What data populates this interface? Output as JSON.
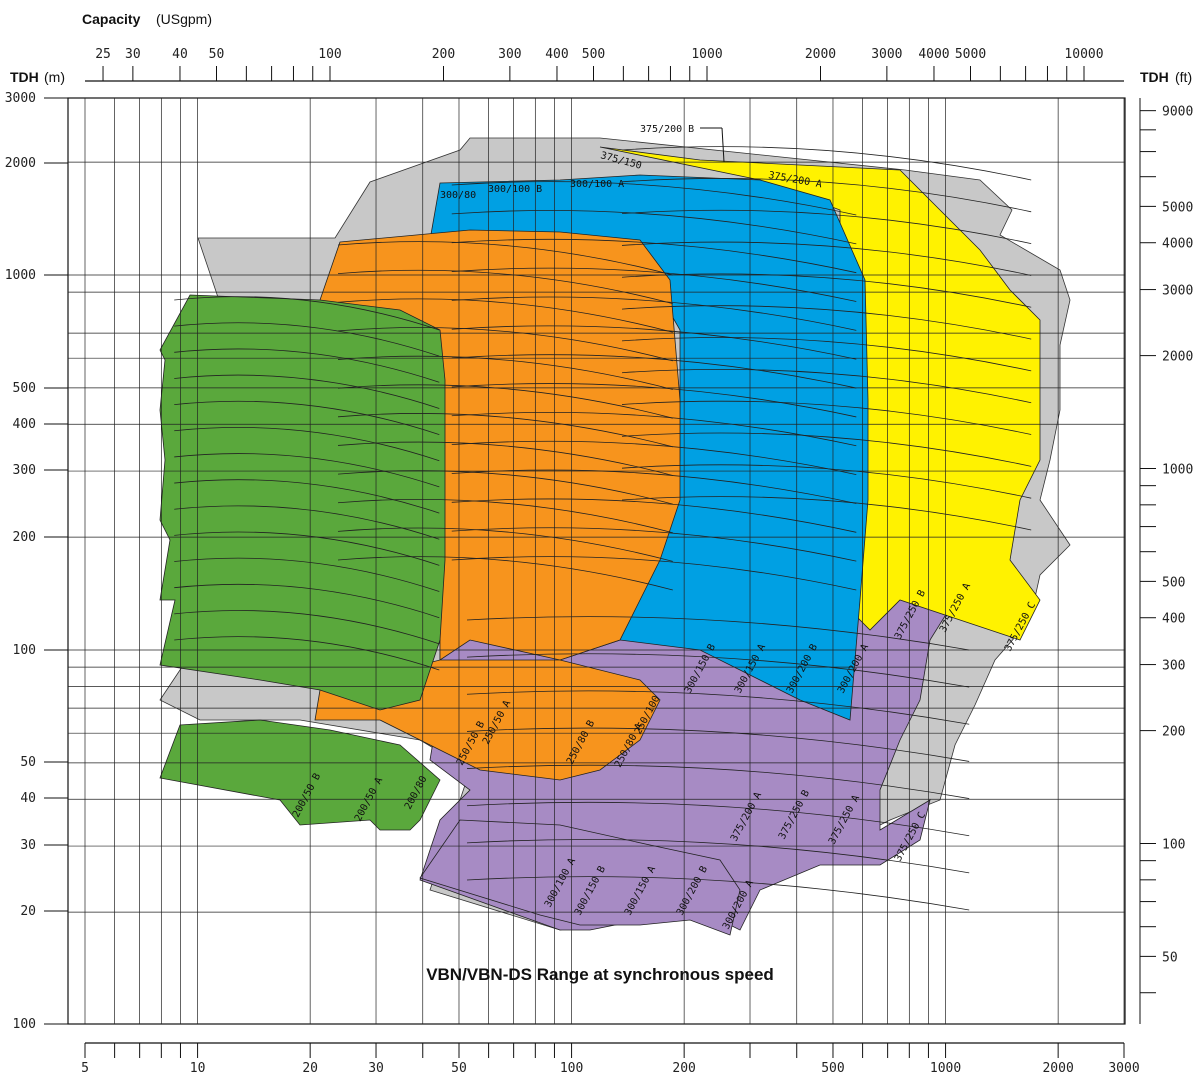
{
  "chart_data": {
    "type": "area",
    "title": "VBN/VBN-DS Range at synchronous speed",
    "axes": {
      "capacity": {
        "label_bold": "Capacity",
        "label_unit": "(USgpm)",
        "scale": "log",
        "tick_labels": [
          "25",
          "30",
          "40",
          "50",
          "100",
          "200",
          "300",
          "400",
          "500",
          "1000",
          "2000",
          "3000",
          "4000",
          "5000",
          "10000"
        ]
      },
      "bottom": {
        "label": "",
        "scale": "log",
        "tick_labels": [
          "5",
          "10",
          "20",
          "30",
          "50",
          "100",
          "200",
          "500",
          "1000",
          "2000",
          "3000"
        ]
      },
      "tdh_m": {
        "label_bold": "TDH",
        "label_unit": "(m)",
        "scale": "log",
        "tick_labels": [
          "3000",
          "2000",
          "1000",
          "500",
          "400",
          "300",
          "200",
          "100",
          "50",
          "40",
          "30",
          "20",
          "100"
        ]
      },
      "tdh_ft": {
        "label_bold": "TDH",
        "label_unit": "(ft)",
        "scale": "log",
        "tick_labels": [
          "9000",
          "5000",
          "4000",
          "3000",
          "2000",
          "1000",
          "500",
          "400",
          "300",
          "200",
          "100",
          "50"
        ]
      }
    },
    "grid": true,
    "series": [
      {
        "name": "Envelope",
        "color": "#c8c8c8"
      },
      {
        "name": "Green",
        "color": "#5aa83c"
      },
      {
        "name": "Orange",
        "color": "#f7941d"
      },
      {
        "name": "Blue",
        "color": "#00a0e3"
      },
      {
        "name": "Yellow",
        "color": "#fff200"
      },
      {
        "name": "Purple",
        "color": "#a78bc4"
      }
    ],
    "zone_labels": [
      {
        "text": "375/200 B",
        "color": "#111111"
      },
      {
        "text": "375/150",
        "color": "#111111"
      },
      {
        "text": "375/200 A",
        "color": "#111111"
      },
      {
        "text": "300/80",
        "color": "#111111"
      },
      {
        "text": "300/100 B",
        "color": "#111111"
      },
      {
        "text": "300/100 A",
        "color": "#111111"
      },
      {
        "text": "200/50 B",
        "color": "#111111"
      },
      {
        "text": "200/50 A",
        "color": "#111111"
      },
      {
        "text": "200/80",
        "color": "#111111"
      },
      {
        "text": "250/50 B",
        "color": "#111111"
      },
      {
        "text": "250/50 A",
        "color": "#111111"
      },
      {
        "text": "250/80 B",
        "color": "#111111"
      },
      {
        "text": "250/80 A",
        "color": "#111111"
      },
      {
        "text": "250/100",
        "color": "#111111"
      },
      {
        "text": "300/150 B",
        "color": "#111111"
      },
      {
        "text": "300/150 A",
        "color": "#111111"
      },
      {
        "text": "300/200 B",
        "color": "#111111"
      },
      {
        "text": "300/200 A",
        "color": "#111111"
      },
      {
        "text": "375/250 B",
        "color": "#111111"
      },
      {
        "text": "375/250 A",
        "color": "#111111"
      },
      {
        "text": "375/250 C",
        "color": "#111111"
      },
      {
        "text": "300/100 A",
        "color": "#111111"
      },
      {
        "text": "300/150 B",
        "color": "#111111"
      },
      {
        "text": "300/150 A",
        "color": "#111111"
      },
      {
        "text": "300/200 B",
        "color": "#111111"
      },
      {
        "text": "300/200 A",
        "color": "#111111"
      },
      {
        "text": "375/200 A",
        "color": "#111111"
      },
      {
        "text": "375/250 B",
        "color": "#111111"
      },
      {
        "text": "375/250 A",
        "color": "#111111"
      },
      {
        "text": "375/250 C",
        "color": "#111111"
      }
    ]
  }
}
